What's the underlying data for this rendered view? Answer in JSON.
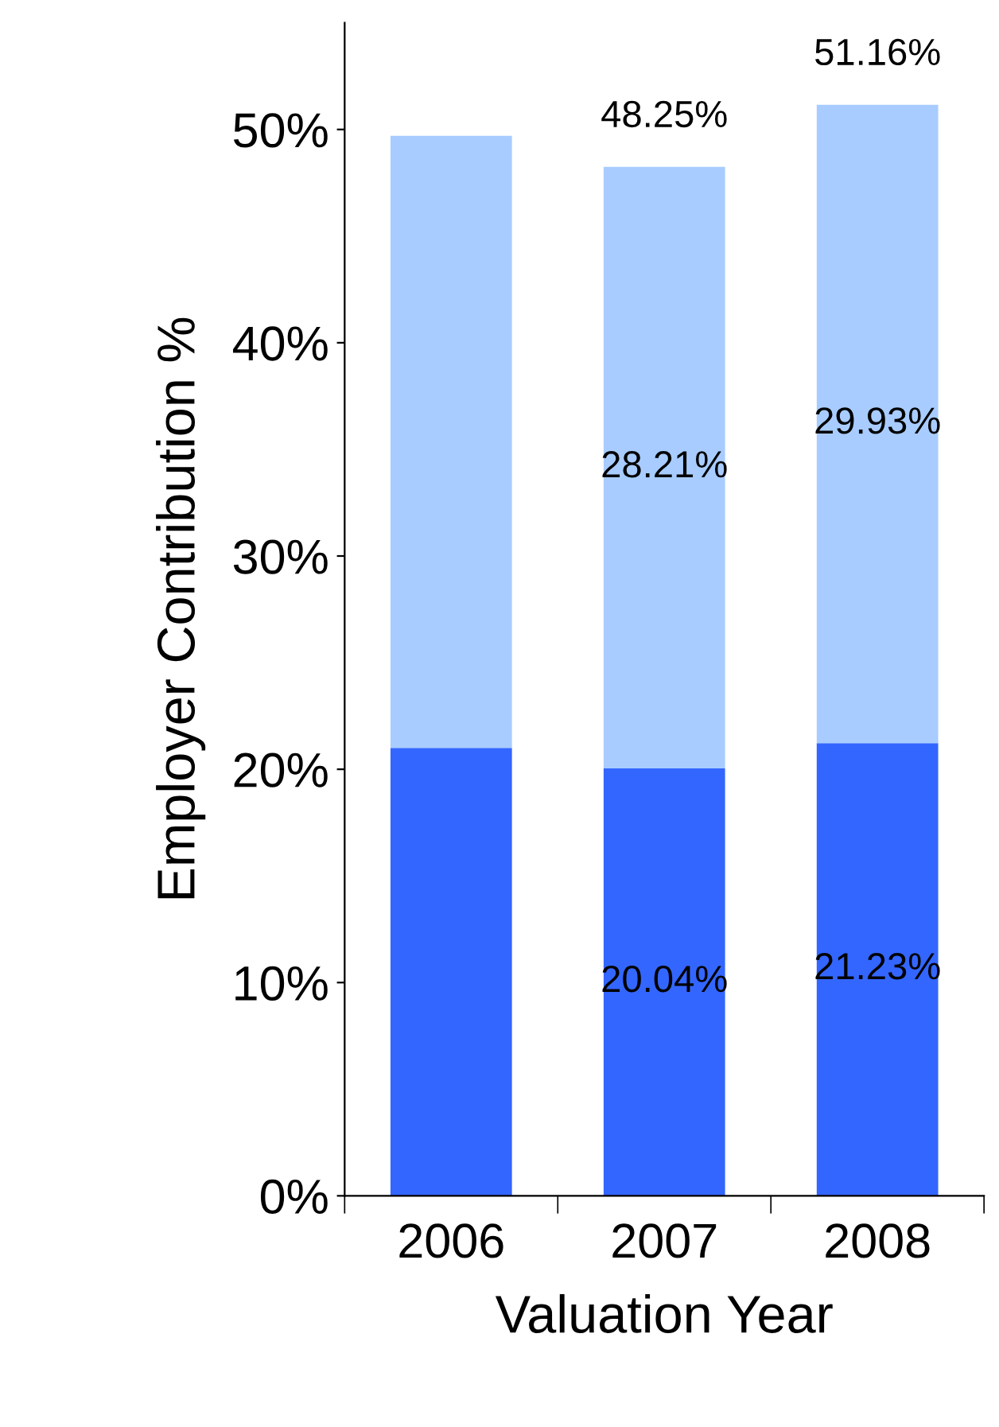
{
  "chart_data": {
    "type": "bar",
    "stacked": true,
    "xlabel": "Valuation Year",
    "ylabel": "Employer Contribution %",
    "categories": [
      "2006",
      "2007",
      "2008"
    ],
    "series": [
      {
        "color": "#3366ff",
        "values": [
          21.0,
          20.04,
          21.23
        ],
        "value_labels": [
          null,
          "20.04%",
          "21.23%"
        ]
      },
      {
        "color": "#a8ccff",
        "values": [
          28.7,
          28.21,
          29.93
        ],
        "value_labels": [
          null,
          "28.21%",
          "29.93%"
        ]
      }
    ],
    "totals": [
      null,
      "48.25%",
      "51.16%"
    ],
    "ylim": [
      0,
      55
    ],
    "yticks": [
      {
        "value": 0,
        "label": "0%"
      },
      {
        "value": 10,
        "label": "10%"
      },
      {
        "value": 20,
        "label": "20%"
      },
      {
        "value": 30,
        "label": "30%"
      },
      {
        "value": 40,
        "label": "40%"
      },
      {
        "value": 50,
        "label": "50%"
      }
    ],
    "grid": false,
    "legend": false
  }
}
